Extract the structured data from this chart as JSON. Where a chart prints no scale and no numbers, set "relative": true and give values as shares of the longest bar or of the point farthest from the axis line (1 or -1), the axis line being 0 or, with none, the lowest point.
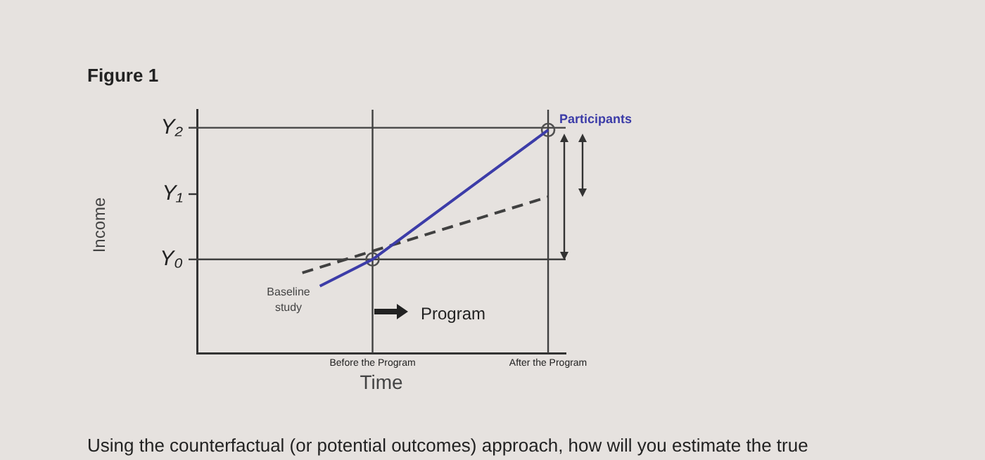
{
  "chart_data": {
    "type": "line",
    "title": "Figure 1",
    "xlabel": "Time",
    "relative": true,
    "categories": [
      null,
      null,
      null,
      null,
      null,
      null,
      null,
      null,
      null,
      null,
      "Before the Program",
      null,
      null,
      null,
      null,
      null,
      null,
      null,
      null,
      null,
      "After the Program",
      null
    ],
    "grid": false,
    "marker": "none",
    "series": [
      {
        "name": "Participants",
        "color": "#3c3ca8",
        "values": [
          null,
          null,
          null,
          null,
          null,
          null,
          null,
          0.3,
          null,
          null,
          0.42,
          null,
          null,
          null,
          null,
          null,
          null,
          null,
          null,
          null,
          1.0,
          null
        ],
        "line_style": "solid"
      },
      {
        "color": "#404040",
        "values": [
          null,
          null,
          null,
          null,
          null,
          null,
          0.36,
          null,
          null,
          null,
          null,
          null,
          null,
          null,
          null,
          null,
          null,
          null,
          null,
          null,
          0.7,
          null
        ],
        "line_style": "dashed"
      },
      {
        "type": "scatter",
        "color": "#505050",
        "marker": "circle",
        "values": [
          null,
          null,
          null,
          null,
          null,
          null,
          null,
          null,
          null,
          null,
          0.42,
          null,
          null,
          null,
          null,
          null,
          null,
          null,
          null,
          null,
          1.0,
          null
        ]
      }
    ],
    "ref_lines": [
      {
        "axis": "y",
        "value": 1.01,
        "label": "Y₂",
        "color": "#404040"
      },
      {
        "axis": "y",
        "value": 0.42,
        "label": "Y₀",
        "color": "#404040"
      },
      {
        "axis": "x",
        "value": "Before the Program",
        "color": "#404040"
      },
      {
        "axis": "x",
        "value": "After the Program",
        "color": "#404040"
      }
    ],
    "annotations": [
      "Income",
      "Y₁",
      "Baseline study",
      "Program",
      "Using the counterfactual (or potential outcomes) approach, how will you estimate the true"
    ]
  }
}
